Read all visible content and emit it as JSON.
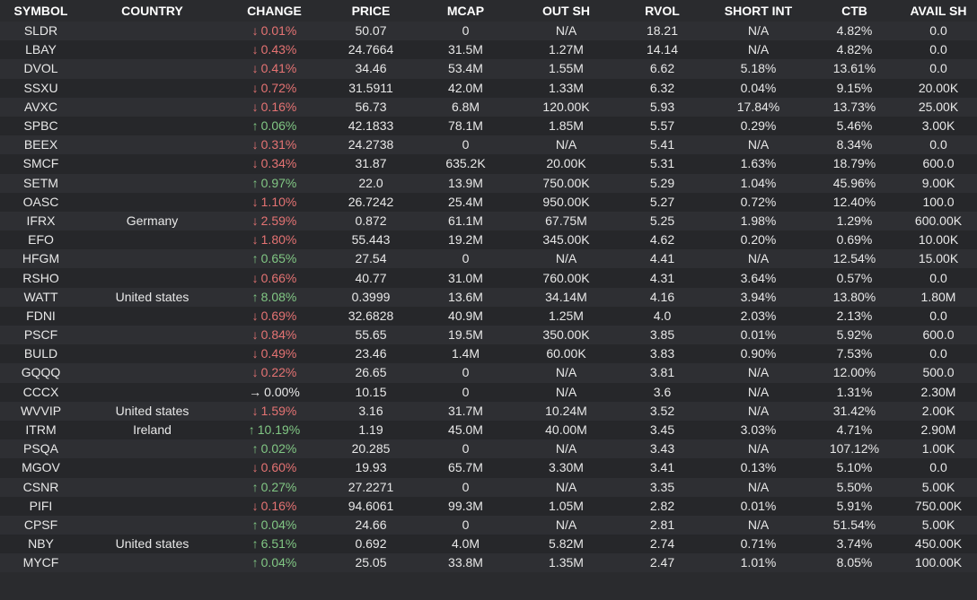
{
  "headers": {
    "symbol": "SYMBOL",
    "country": "COUNTRY",
    "change": "CHANGE",
    "price": "PRICE",
    "mcap": "MCAP",
    "out_sh": "OUT SH",
    "rvol": "RVOL",
    "short_int": "SHORT INT",
    "ctb": "CTB",
    "avail_sh": "AVAIL SH"
  },
  "colors": {
    "up": "#81c784",
    "down": "#e57373",
    "flat": "#e8e8e8",
    "background": "#2a2b2e"
  },
  "rows": [
    {
      "symbol": "SLDR",
      "country": "",
      "direction": "down",
      "arrow": "↓",
      "change": "0.01%",
      "price": "50.07",
      "mcap": "0",
      "out_sh": "N/A",
      "rvol": "18.21",
      "short_int": "N/A",
      "ctb": "4.82%",
      "avail_sh": "0.0"
    },
    {
      "symbol": "LBAY",
      "country": "",
      "direction": "down",
      "arrow": "↓",
      "change": "0.43%",
      "price": "24.7664",
      "mcap": "31.5M",
      "out_sh": "1.27M",
      "rvol": "14.14",
      "short_int": "N/A",
      "ctb": "4.82%",
      "avail_sh": "0.0"
    },
    {
      "symbol": "DVOL",
      "country": "",
      "direction": "down",
      "arrow": "↓",
      "change": "0.41%",
      "price": "34.46",
      "mcap": "53.4M",
      "out_sh": "1.55M",
      "rvol": "6.62",
      "short_int": "5.18%",
      "ctb": "13.61%",
      "avail_sh": "0.0"
    },
    {
      "symbol": "SSXU",
      "country": "",
      "direction": "down",
      "arrow": "↓",
      "change": "0.72%",
      "price": "31.5911",
      "mcap": "42.0M",
      "out_sh": "1.33M",
      "rvol": "6.32",
      "short_int": "0.04%",
      "ctb": "9.15%",
      "avail_sh": "20.00K"
    },
    {
      "symbol": "AVXC",
      "country": "",
      "direction": "down",
      "arrow": "↓",
      "change": "0.16%",
      "price": "56.73",
      "mcap": "6.8M",
      "out_sh": "120.00K",
      "rvol": "5.93",
      "short_int": "17.84%",
      "ctb": "13.73%",
      "avail_sh": "25.00K"
    },
    {
      "symbol": "SPBC",
      "country": "",
      "direction": "up",
      "arrow": "↑",
      "change": "0.06%",
      "price": "42.1833",
      "mcap": "78.1M",
      "out_sh": "1.85M",
      "rvol": "5.57",
      "short_int": "0.29%",
      "ctb": "5.46%",
      "avail_sh": "3.00K"
    },
    {
      "symbol": "BEEX",
      "country": "",
      "direction": "down",
      "arrow": "↓",
      "change": "0.31%",
      "price": "24.2738",
      "mcap": "0",
      "out_sh": "N/A",
      "rvol": "5.41",
      "short_int": "N/A",
      "ctb": "8.34%",
      "avail_sh": "0.0"
    },
    {
      "symbol": "SMCF",
      "country": "",
      "direction": "down",
      "arrow": "↓",
      "change": "0.34%",
      "price": "31.87",
      "mcap": "635.2K",
      "out_sh": "20.00K",
      "rvol": "5.31",
      "short_int": "1.63%",
      "ctb": "18.79%",
      "avail_sh": "600.0"
    },
    {
      "symbol": "SETM",
      "country": "",
      "direction": "up",
      "arrow": "↑",
      "change": "0.97%",
      "price": "22.0",
      "mcap": "13.9M",
      "out_sh": "750.00K",
      "rvol": "5.29",
      "short_int": "1.04%",
      "ctb": "45.96%",
      "avail_sh": "9.00K"
    },
    {
      "symbol": "OASC",
      "country": "",
      "direction": "down",
      "arrow": "↓",
      "change": "1.10%",
      "price": "26.7242",
      "mcap": "25.4M",
      "out_sh": "950.00K",
      "rvol": "5.27",
      "short_int": "0.72%",
      "ctb": "12.40%",
      "avail_sh": "100.0"
    },
    {
      "symbol": "IFRX",
      "country": "Germany",
      "direction": "down",
      "arrow": "↓",
      "change": "2.59%",
      "price": "0.872",
      "mcap": "61.1M",
      "out_sh": "67.75M",
      "rvol": "5.25",
      "short_int": "1.98%",
      "ctb": "1.29%",
      "avail_sh": "600.00K"
    },
    {
      "symbol": "EFO",
      "country": "",
      "direction": "down",
      "arrow": "↓",
      "change": "1.80%",
      "price": "55.443",
      "mcap": "19.2M",
      "out_sh": "345.00K",
      "rvol": "4.62",
      "short_int": "0.20%",
      "ctb": "0.69%",
      "avail_sh": "10.00K"
    },
    {
      "symbol": "HFGM",
      "country": "",
      "direction": "up",
      "arrow": "↑",
      "change": "0.65%",
      "price": "27.54",
      "mcap": "0",
      "out_sh": "N/A",
      "rvol": "4.41",
      "short_int": "N/A",
      "ctb": "12.54%",
      "avail_sh": "15.00K"
    },
    {
      "symbol": "RSHO",
      "country": "",
      "direction": "down",
      "arrow": "↓",
      "change": "0.66%",
      "price": "40.77",
      "mcap": "31.0M",
      "out_sh": "760.00K",
      "rvol": "4.31",
      "short_int": "3.64%",
      "ctb": "0.57%",
      "avail_sh": "0.0"
    },
    {
      "symbol": "WATT",
      "country": "United states",
      "direction": "up",
      "arrow": "↑",
      "change": "8.08%",
      "price": "0.3999",
      "mcap": "13.6M",
      "out_sh": "34.14M",
      "rvol": "4.16",
      "short_int": "3.94%",
      "ctb": "13.80%",
      "avail_sh": "1.80M"
    },
    {
      "symbol": "FDNI",
      "country": "",
      "direction": "down",
      "arrow": "↓",
      "change": "0.69%",
      "price": "32.6828",
      "mcap": "40.9M",
      "out_sh": "1.25M",
      "rvol": "4.0",
      "short_int": "2.03%",
      "ctb": "2.13%",
      "avail_sh": "0.0"
    },
    {
      "symbol": "PSCF",
      "country": "",
      "direction": "down",
      "arrow": "↓",
      "change": "0.84%",
      "price": "55.65",
      "mcap": "19.5M",
      "out_sh": "350.00K",
      "rvol": "3.85",
      "short_int": "0.01%",
      "ctb": "5.92%",
      "avail_sh": "600.0"
    },
    {
      "symbol": "BULD",
      "country": "",
      "direction": "down",
      "arrow": "↓",
      "change": "0.49%",
      "price": "23.46",
      "mcap": "1.4M",
      "out_sh": "60.00K",
      "rvol": "3.83",
      "short_int": "0.90%",
      "ctb": "7.53%",
      "avail_sh": "0.0"
    },
    {
      "symbol": "GQQQ",
      "country": "",
      "direction": "down",
      "arrow": "↓",
      "change": "0.22%",
      "price": "26.65",
      "mcap": "0",
      "out_sh": "N/A",
      "rvol": "3.81",
      "short_int": "N/A",
      "ctb": "12.00%",
      "avail_sh": "500.0"
    },
    {
      "symbol": "CCCX",
      "country": "",
      "direction": "flat",
      "arrow": "→",
      "change": "0.00%",
      "price": "10.15",
      "mcap": "0",
      "out_sh": "N/A",
      "rvol": "3.6",
      "short_int": "N/A",
      "ctb": "1.31%",
      "avail_sh": "2.30M"
    },
    {
      "symbol": "WVVIP",
      "country": "United states",
      "direction": "down",
      "arrow": "↓",
      "change": "1.59%",
      "price": "3.16",
      "mcap": "31.7M",
      "out_sh": "10.24M",
      "rvol": "3.52",
      "short_int": "N/A",
      "ctb": "31.42%",
      "avail_sh": "2.00K"
    },
    {
      "symbol": "ITRM",
      "country": "Ireland",
      "direction": "up",
      "arrow": "↑",
      "change": "10.19%",
      "price": "1.19",
      "mcap": "45.0M",
      "out_sh": "40.00M",
      "rvol": "3.45",
      "short_int": "3.03%",
      "ctb": "4.71%",
      "avail_sh": "2.90M"
    },
    {
      "symbol": "PSQA",
      "country": "",
      "direction": "up",
      "arrow": "↑",
      "change": "0.02%",
      "price": "20.285",
      "mcap": "0",
      "out_sh": "N/A",
      "rvol": "3.43",
      "short_int": "N/A",
      "ctb": "107.12%",
      "avail_sh": "1.00K"
    },
    {
      "symbol": "MGOV",
      "country": "",
      "direction": "down",
      "arrow": "↓",
      "change": "0.60%",
      "price": "19.93",
      "mcap": "65.7M",
      "out_sh": "3.30M",
      "rvol": "3.41",
      "short_int": "0.13%",
      "ctb": "5.10%",
      "avail_sh": "0.0"
    },
    {
      "symbol": "CSNR",
      "country": "",
      "direction": "up",
      "arrow": "↑",
      "change": "0.27%",
      "price": "27.2271",
      "mcap": "0",
      "out_sh": "N/A",
      "rvol": "3.35",
      "short_int": "N/A",
      "ctb": "5.50%",
      "avail_sh": "5.00K"
    },
    {
      "symbol": "PIFI",
      "country": "",
      "direction": "down",
      "arrow": "↓",
      "change": "0.16%",
      "price": "94.6061",
      "mcap": "99.3M",
      "out_sh": "1.05M",
      "rvol": "2.82",
      "short_int": "0.01%",
      "ctb": "5.91%",
      "avail_sh": "750.00K"
    },
    {
      "symbol": "CPSF",
      "country": "",
      "direction": "up",
      "arrow": "↑",
      "change": "0.04%",
      "price": "24.66",
      "mcap": "0",
      "out_sh": "N/A",
      "rvol": "2.81",
      "short_int": "N/A",
      "ctb": "51.54%",
      "avail_sh": "5.00K"
    },
    {
      "symbol": "NBY",
      "country": "United states",
      "direction": "up",
      "arrow": "↑",
      "change": "6.51%",
      "price": "0.692",
      "mcap": "4.0M",
      "out_sh": "5.82M",
      "rvol": "2.74",
      "short_int": "0.71%",
      "ctb": "3.74%",
      "avail_sh": "450.00K"
    },
    {
      "symbol": "MYCF",
      "country": "",
      "direction": "up",
      "arrow": "↑",
      "change": "0.04%",
      "price": "25.05",
      "mcap": "33.8M",
      "out_sh": "1.35M",
      "rvol": "2.47",
      "short_int": "1.01%",
      "ctb": "8.05%",
      "avail_sh": "100.00K"
    }
  ]
}
